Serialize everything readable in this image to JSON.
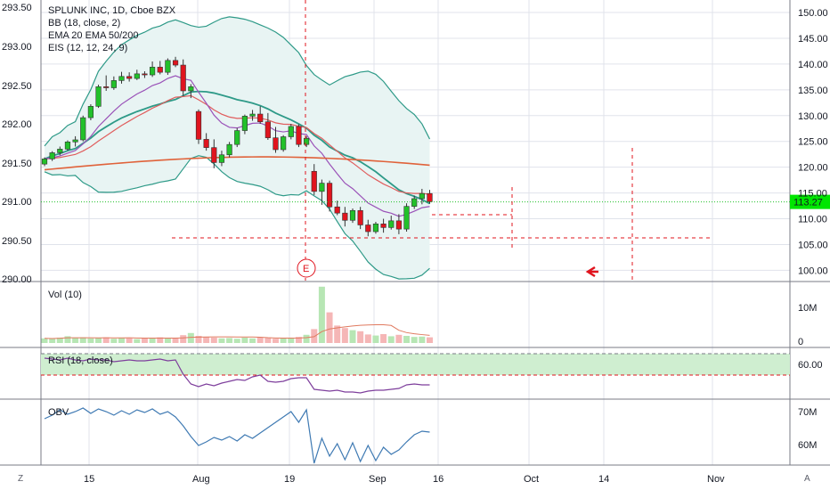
{
  "legend": {
    "title": "SPLUNK INC, 1D, Cboe BZX",
    "bb": "BB (18, close, 2)",
    "ema": "EMA 20 EMA 50/200",
    "eis": "EIS (12, 12, 24, 9)"
  },
  "panes": {
    "vol": "Vol (10)",
    "rsi": "RSI (18, close)",
    "obv": "OBV"
  },
  "earnings_marker": "E",
  "price_badge": "113.27",
  "corner_left": "Z",
  "corner_right": "A",
  "colors": {
    "up": "#22c12a",
    "down": "#e0141e",
    "bb_band": "#2e9a88",
    "ema20": "#e05d5d",
    "ema50": "#9a52b8",
    "ema200": "#e0623a",
    "grid": "#e0e3eb",
    "badge": "#00e600",
    "rsi_band": "#cfeed0",
    "rsi_line": "#7e3f9c",
    "obv_line": "#3f7ab3"
  },
  "chart_data": {
    "type": "candlestick",
    "symbol": "SPLUNK INC",
    "interval": "1D",
    "exchange": "Cboe BZX",
    "left_axis_ticks": [
      "293.50",
      "293.00",
      "292.50",
      "292.00",
      "291.50",
      "291.00",
      "290.50",
      "290.00"
    ],
    "right_axis_ticks": [
      "150.00",
      "145.00",
      "140.00",
      "135.00",
      "130.00",
      "125.00",
      "120.00",
      "115.00",
      "110.00",
      "105.00",
      "100.00"
    ],
    "x_tick_labels": [
      "15",
      "Aug",
      "19",
      "Sep",
      "16",
      "Oct",
      "14",
      "Nov"
    ],
    "ohlc": [
      [
        120.6,
        121.9,
        120.2,
        121.6
      ],
      [
        121.6,
        123.1,
        121.2,
        122.8
      ],
      [
        122.8,
        124.0,
        122.3,
        123.5
      ],
      [
        123.5,
        125.2,
        123.2,
        124.9
      ],
      [
        124.9,
        126.0,
        124.0,
        125.3
      ],
      [
        125.3,
        130.0,
        125.0,
        129.6
      ],
      [
        129.6,
        132.2,
        129.1,
        131.8
      ],
      [
        131.8,
        136.0,
        131.5,
        135.6
      ],
      [
        135.6,
        137.8,
        134.8,
        135.4
      ],
      [
        135.4,
        137.6,
        135.0,
        136.8
      ],
      [
        136.8,
        138.5,
        136.2,
        137.6
      ],
      [
        137.6,
        138.4,
        136.6,
        137.2
      ],
      [
        137.2,
        138.9,
        136.9,
        138.1
      ],
      [
        138.1,
        138.6,
        137.3,
        137.9
      ],
      [
        137.9,
        140.5,
        137.5,
        139.4
      ],
      [
        139.4,
        140.6,
        138.0,
        138.4
      ],
      [
        138.4,
        141.1,
        137.9,
        140.7
      ],
      [
        140.7,
        141.4,
        139.4,
        139.8
      ],
      [
        139.8,
        140.9,
        133.8,
        134.8
      ],
      [
        134.8,
        136.1,
        133.4,
        135.6
      ],
      [
        130.8,
        131.2,
        124.5,
        125.4
      ],
      [
        125.4,
        126.6,
        123.2,
        123.8
      ],
      [
        123.8,
        125.4,
        119.8,
        120.9
      ],
      [
        120.9,
        123.2,
        120.2,
        122.4
      ],
      [
        122.4,
        124.9,
        121.9,
        124.4
      ],
      [
        124.4,
        127.6,
        123.9,
        127.1
      ],
      [
        127.1,
        130.2,
        126.4,
        129.9
      ],
      [
        129.9,
        131.1,
        129.0,
        130.3
      ],
      [
        130.3,
        131.8,
        128.4,
        128.8
      ],
      [
        128.8,
        130.5,
        125.3,
        125.7
      ],
      [
        125.7,
        127.8,
        122.8,
        123.4
      ],
      [
        123.4,
        126.2,
        123.0,
        125.9
      ],
      [
        125.9,
        128.4,
        125.4,
        127.9
      ],
      [
        127.9,
        128.3,
        123.9,
        124.4
      ],
      [
        124.4,
        126.0,
        123.9,
        125.6
      ],
      [
        119.2,
        120.6,
        114.6,
        115.3
      ],
      [
        115.3,
        117.6,
        112.7,
        116.9
      ],
      [
        116.9,
        117.4,
        111.4,
        112.3
      ],
      [
        112.3,
        113.5,
        110.7,
        111.1
      ],
      [
        111.1,
        112.3,
        108.5,
        109.7
      ],
      [
        109.7,
        112.0,
        109.2,
        111.6
      ],
      [
        111.6,
        112.3,
        108.0,
        108.8
      ],
      [
        108.8,
        109.8,
        106.6,
        107.5
      ],
      [
        107.5,
        109.4,
        107.1,
        109.0
      ],
      [
        109.0,
        110.0,
        107.3,
        108.3
      ],
      [
        108.3,
        110.6,
        107.9,
        109.6
      ],
      [
        109.6,
        110.9,
        107.0,
        108.0
      ],
      [
        108.0,
        113.0,
        107.5,
        112.4
      ],
      [
        112.4,
        114.5,
        111.9,
        113.9
      ],
      [
        113.9,
        115.8,
        112.8,
        114.9
      ],
      [
        114.9,
        115.6,
        112.9,
        113.3
      ]
    ],
    "volume_millions": [
      1.3,
      1.2,
      1.5,
      1.9,
      1.4,
      1.6,
      1.3,
      1.4,
      1.6,
      1.2,
      1.4,
      1.3,
      1.1,
      1.5,
      1.3,
      1.6,
      1.4,
      1.3,
      2.2,
      2.8,
      2.0,
      1.7,
      1.5,
      1.3,
      1.4,
      1.2,
      1.5,
      1.3,
      1.6,
      1.4,
      1.2,
      1.3,
      1.5,
      1.7,
      2.3,
      3.9,
      15.8,
      8.6,
      4.9,
      4.2,
      3.6,
      3.3,
      2.4,
      2.1,
      2.5,
      1.9,
      2.3,
      2.0,
      1.7,
      1.8,
      1.6
    ],
    "rsi_levels": {
      "upper": 70,
      "lower": 30
    },
    "rsi_right_tick": "60.00",
    "volume_right_ticks": [
      "10M",
      "0"
    ],
    "obv_right_ticks": [
      "70M",
      "60M"
    ]
  }
}
